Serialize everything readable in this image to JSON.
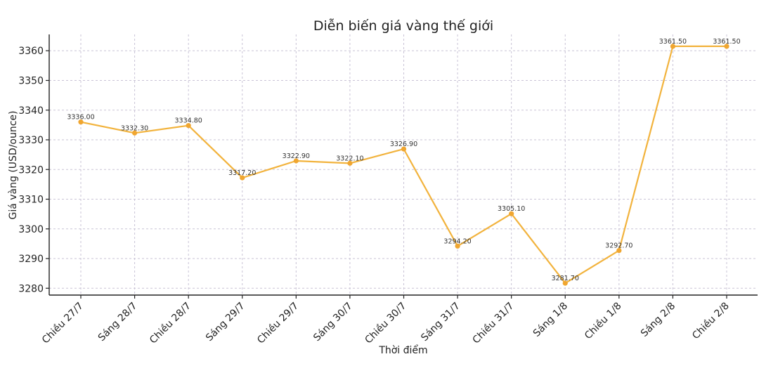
{
  "chart_data": {
    "type": "line",
    "title": "Diễn biến giá vàng thế giới",
    "xlabel": "Thời điểm",
    "ylabel": "Giá vàng (USD/ounce)",
    "categories": [
      "Chiều 27/7",
      "Sáng 28/7",
      "Chiều 28/7",
      "Sáng 29/7",
      "Chiều 29/7",
      "Sáng 30/7",
      "Chiều 30/7",
      "Sáng 31/7",
      "Chiều 31/7",
      "Sáng 1/8",
      "Chiều 1/8",
      "Sáng 2/8",
      "Chiều 2/8"
    ],
    "values": [
      3336.0,
      3332.3,
      3334.8,
      3317.2,
      3322.9,
      3322.1,
      3326.9,
      3294.2,
      3305.1,
      3281.7,
      3292.7,
      3361.5,
      3361.5
    ],
    "data_labels": [
      "3336.00",
      "3332.30",
      "3334.80",
      "3317.20",
      "3322.90",
      "3322.10",
      "3326.90",
      "3294.20",
      "3305.10",
      "3281.70",
      "3292.70",
      "3361.50",
      "3361.50"
    ],
    "yticks": [
      3280,
      3290,
      3300,
      3310,
      3320,
      3330,
      3340,
      3350,
      3360
    ],
    "ylim": [
      3277.7,
      3365.5
    ],
    "grid": true,
    "line_color": "#f2b33d",
    "marker_color": "#f0a630"
  }
}
